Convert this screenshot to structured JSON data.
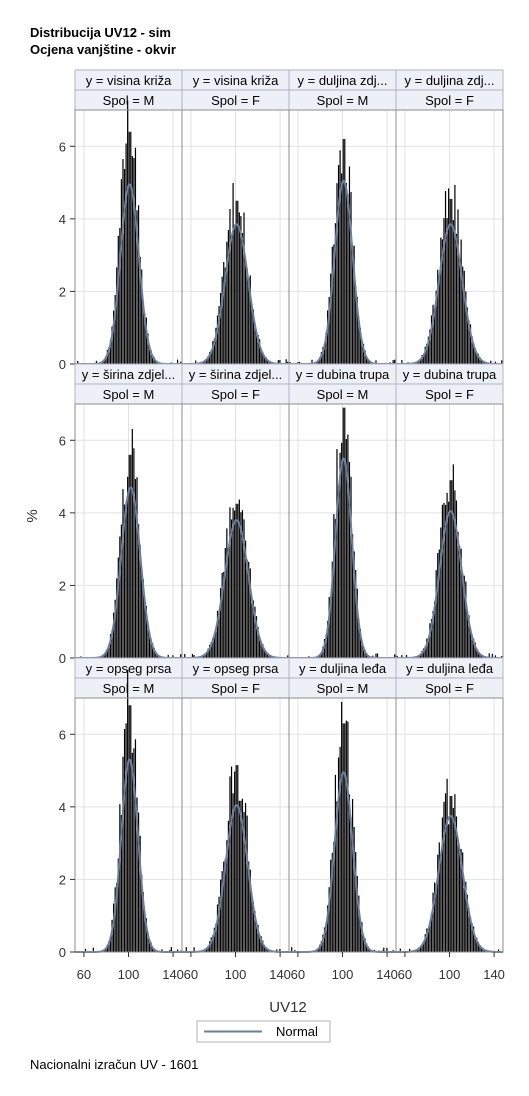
{
  "title": [
    "Distribucija UV12 - sim",
    "Ocjena vanjštine - okvir"
  ],
  "footnote": "Nacionalni izračun UV - 1601",
  "colors": {
    "bar": "#000000",
    "curve": "#6a7f9f",
    "header_bg": "#eef0f8",
    "grid": "#e2e2e2",
    "frame": "#8c8c8c"
  },
  "chart_data": {
    "type": "histogram-panel",
    "xlabel": "UV12",
    "ylabel": "%",
    "xlim": [
      52,
      148
    ],
    "ylim": [
      0,
      7.0
    ],
    "x_ticks": [
      60,
      100,
      140
    ],
    "y_ticks": [
      0,
      2,
      4,
      6
    ],
    "grid": true,
    "legend": {
      "position": "bottom",
      "entries": [
        "Normal"
      ]
    },
    "panels": [
      {
        "row": 0,
        "col": 0,
        "header": "y = visina križa",
        "subheader": "Spol = M",
        "peak": 6.4,
        "normal_peak": 4.95,
        "mean": 101,
        "sd": 8.2
      },
      {
        "row": 0,
        "col": 1,
        "header": "y = visina križa",
        "subheader": "Spol = F",
        "peak": 4.5,
        "normal_peak": 3.85,
        "mean": 101,
        "sd": 10.3
      },
      {
        "row": 0,
        "col": 2,
        "header": "y = duljina zdj...",
        "subheader": "Spol = M",
        "peak": 6.2,
        "normal_peak": 5.05,
        "mean": 101,
        "sd": 8.0
      },
      {
        "row": 0,
        "col": 3,
        "header": "y = duljina zdj...",
        "subheader": "Spol = F",
        "peak": 4.55,
        "normal_peak": 3.85,
        "mean": 101,
        "sd": 10.3
      },
      {
        "row": 1,
        "col": 0,
        "header": "y = širina zdjel...",
        "subheader": "Spol = M",
        "peak": 5.6,
        "normal_peak": 4.7,
        "mean": 102,
        "sd": 8.5
      },
      {
        "row": 1,
        "col": 1,
        "header": "y = širina zdjel...",
        "subheader": "Spol = F",
        "peak": 4.25,
        "normal_peak": 3.8,
        "mean": 101,
        "sd": 10.5
      },
      {
        "row": 1,
        "col": 2,
        "header": "y = dubina trupa",
        "subheader": "Spol = M",
        "peak": 6.9,
        "normal_peak": 5.5,
        "mean": 101,
        "sd": 7.3
      },
      {
        "row": 1,
        "col": 3,
        "header": "y = dubina trupa",
        "subheader": "Spol = F",
        "peak": 4.9,
        "normal_peak": 4.05,
        "mean": 101,
        "sd": 9.8
      },
      {
        "row": 2,
        "col": 0,
        "header": "y = opseg prsa",
        "subheader": "Spol = M",
        "peak": 6.8,
        "normal_peak": 5.3,
        "mean": 101,
        "sd": 7.5
      },
      {
        "row": 2,
        "col": 1,
        "header": "y = opseg prsa",
        "subheader": "Spol = F",
        "peak": 5.15,
        "normal_peak": 4.05,
        "mean": 101,
        "sd": 9.8
      },
      {
        "row": 2,
        "col": 2,
        "header": "y = duljina leđa",
        "subheader": "Spol = M",
        "peak": 6.3,
        "normal_peak": 4.95,
        "mean": 101,
        "sd": 8.0
      },
      {
        "row": 2,
        "col": 3,
        "header": "y = duljina leđa",
        "subheader": "Spol = F",
        "peak": 4.3,
        "normal_peak": 3.75,
        "mean": 101,
        "sd": 10.5
      }
    ]
  }
}
